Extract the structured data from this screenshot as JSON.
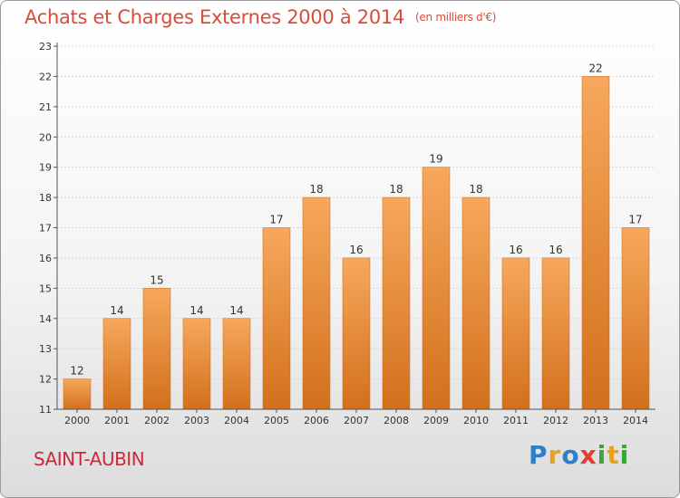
{
  "title": "Achats et Charges Externes 2000 à 2014",
  "unit": "(en milliers d'€)",
  "place": "SAINT-AUBIN",
  "logo": {
    "p": "P",
    "r": "r",
    "o": "o",
    "x": "x",
    "i1": "i",
    "t": "t",
    "i2": "i"
  },
  "colors": {
    "bar_light": "#f7a85c",
    "bar_dark": "#d2701c",
    "title": "#d84d3a",
    "place": "#d0283a"
  },
  "chart_data": {
    "type": "bar",
    "title": "Achats et Charges Externes 2000 à 2014",
    "categories": [
      "2000",
      "2001",
      "2002",
      "2003",
      "2004",
      "2005",
      "2006",
      "2007",
      "2008",
      "2009",
      "2010",
      "2011",
      "2012",
      "2013",
      "2014"
    ],
    "values": [
      12,
      14,
      15,
      14,
      14,
      17,
      18,
      16,
      18,
      19,
      18,
      16,
      16,
      22,
      17
    ],
    "ylim": [
      11,
      23
    ],
    "yticks": [
      11,
      12,
      13,
      14,
      15,
      16,
      17,
      18,
      19,
      20,
      21,
      22,
      23
    ],
    "grid": true,
    "legend": "none"
  }
}
